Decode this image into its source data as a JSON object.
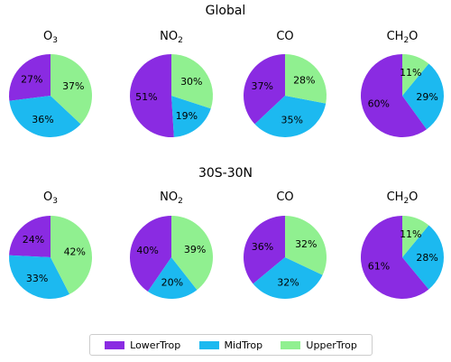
{
  "chart_data": {
    "type": "pie",
    "legend": {
      "placement": "bottom-center",
      "entries": [
        "LowerTrop",
        "MidTrop",
        "UpperTrop"
      ]
    },
    "colors": {
      "LowerTrop": "#8a2be2",
      "MidTrop": "#1cb9f0",
      "UpperTrop": "#90f090"
    },
    "panels": [
      {
        "title": "Global",
        "pies": [
          {
            "species": "O3",
            "species_base": "O",
            "species_sub": "3",
            "values": [
              27,
              36,
              37
            ],
            "labels": [
              "27%",
              "36%",
              "37%"
            ]
          },
          {
            "species": "NO2",
            "species_base": "NO",
            "species_sub": "2",
            "values": [
              51,
              19,
              30
            ],
            "labels": [
              "51%",
              "19%",
              "30%"
            ]
          },
          {
            "species": "CO",
            "species_base": "CO",
            "species_sub": "",
            "values": [
              37,
              35,
              28
            ],
            "labels": [
              "37%",
              "35%",
              "28%"
            ]
          },
          {
            "species": "CH2O",
            "species_base": "CH",
            "species_sub": "2",
            "species_tail": "O",
            "values": [
              60,
              29,
              11
            ],
            "labels": [
              "60%",
              "29%",
              "11%"
            ]
          }
        ]
      },
      {
        "title": "30S-30N",
        "pies": [
          {
            "species": "O3",
            "species_base": "O",
            "species_sub": "3",
            "values": [
              24,
              33,
              42
            ],
            "labels": [
              "24%",
              "33%",
              "42%"
            ]
          },
          {
            "species": "NO2",
            "species_base": "NO",
            "species_sub": "2",
            "values": [
              40,
              20,
              39
            ],
            "labels": [
              "40%",
              "20%",
              "39%"
            ]
          },
          {
            "species": "CO",
            "species_base": "CO",
            "species_sub": "",
            "values": [
              36,
              32,
              32
            ],
            "labels": [
              "36%",
              "32%",
              "32%"
            ]
          },
          {
            "species": "CH2O",
            "species_base": "CH",
            "species_sub": "2",
            "species_tail": "O",
            "values": [
              61,
              28,
              11
            ],
            "labels": [
              "61%",
              "28%",
              "11%"
            ]
          }
        ]
      }
    ]
  }
}
